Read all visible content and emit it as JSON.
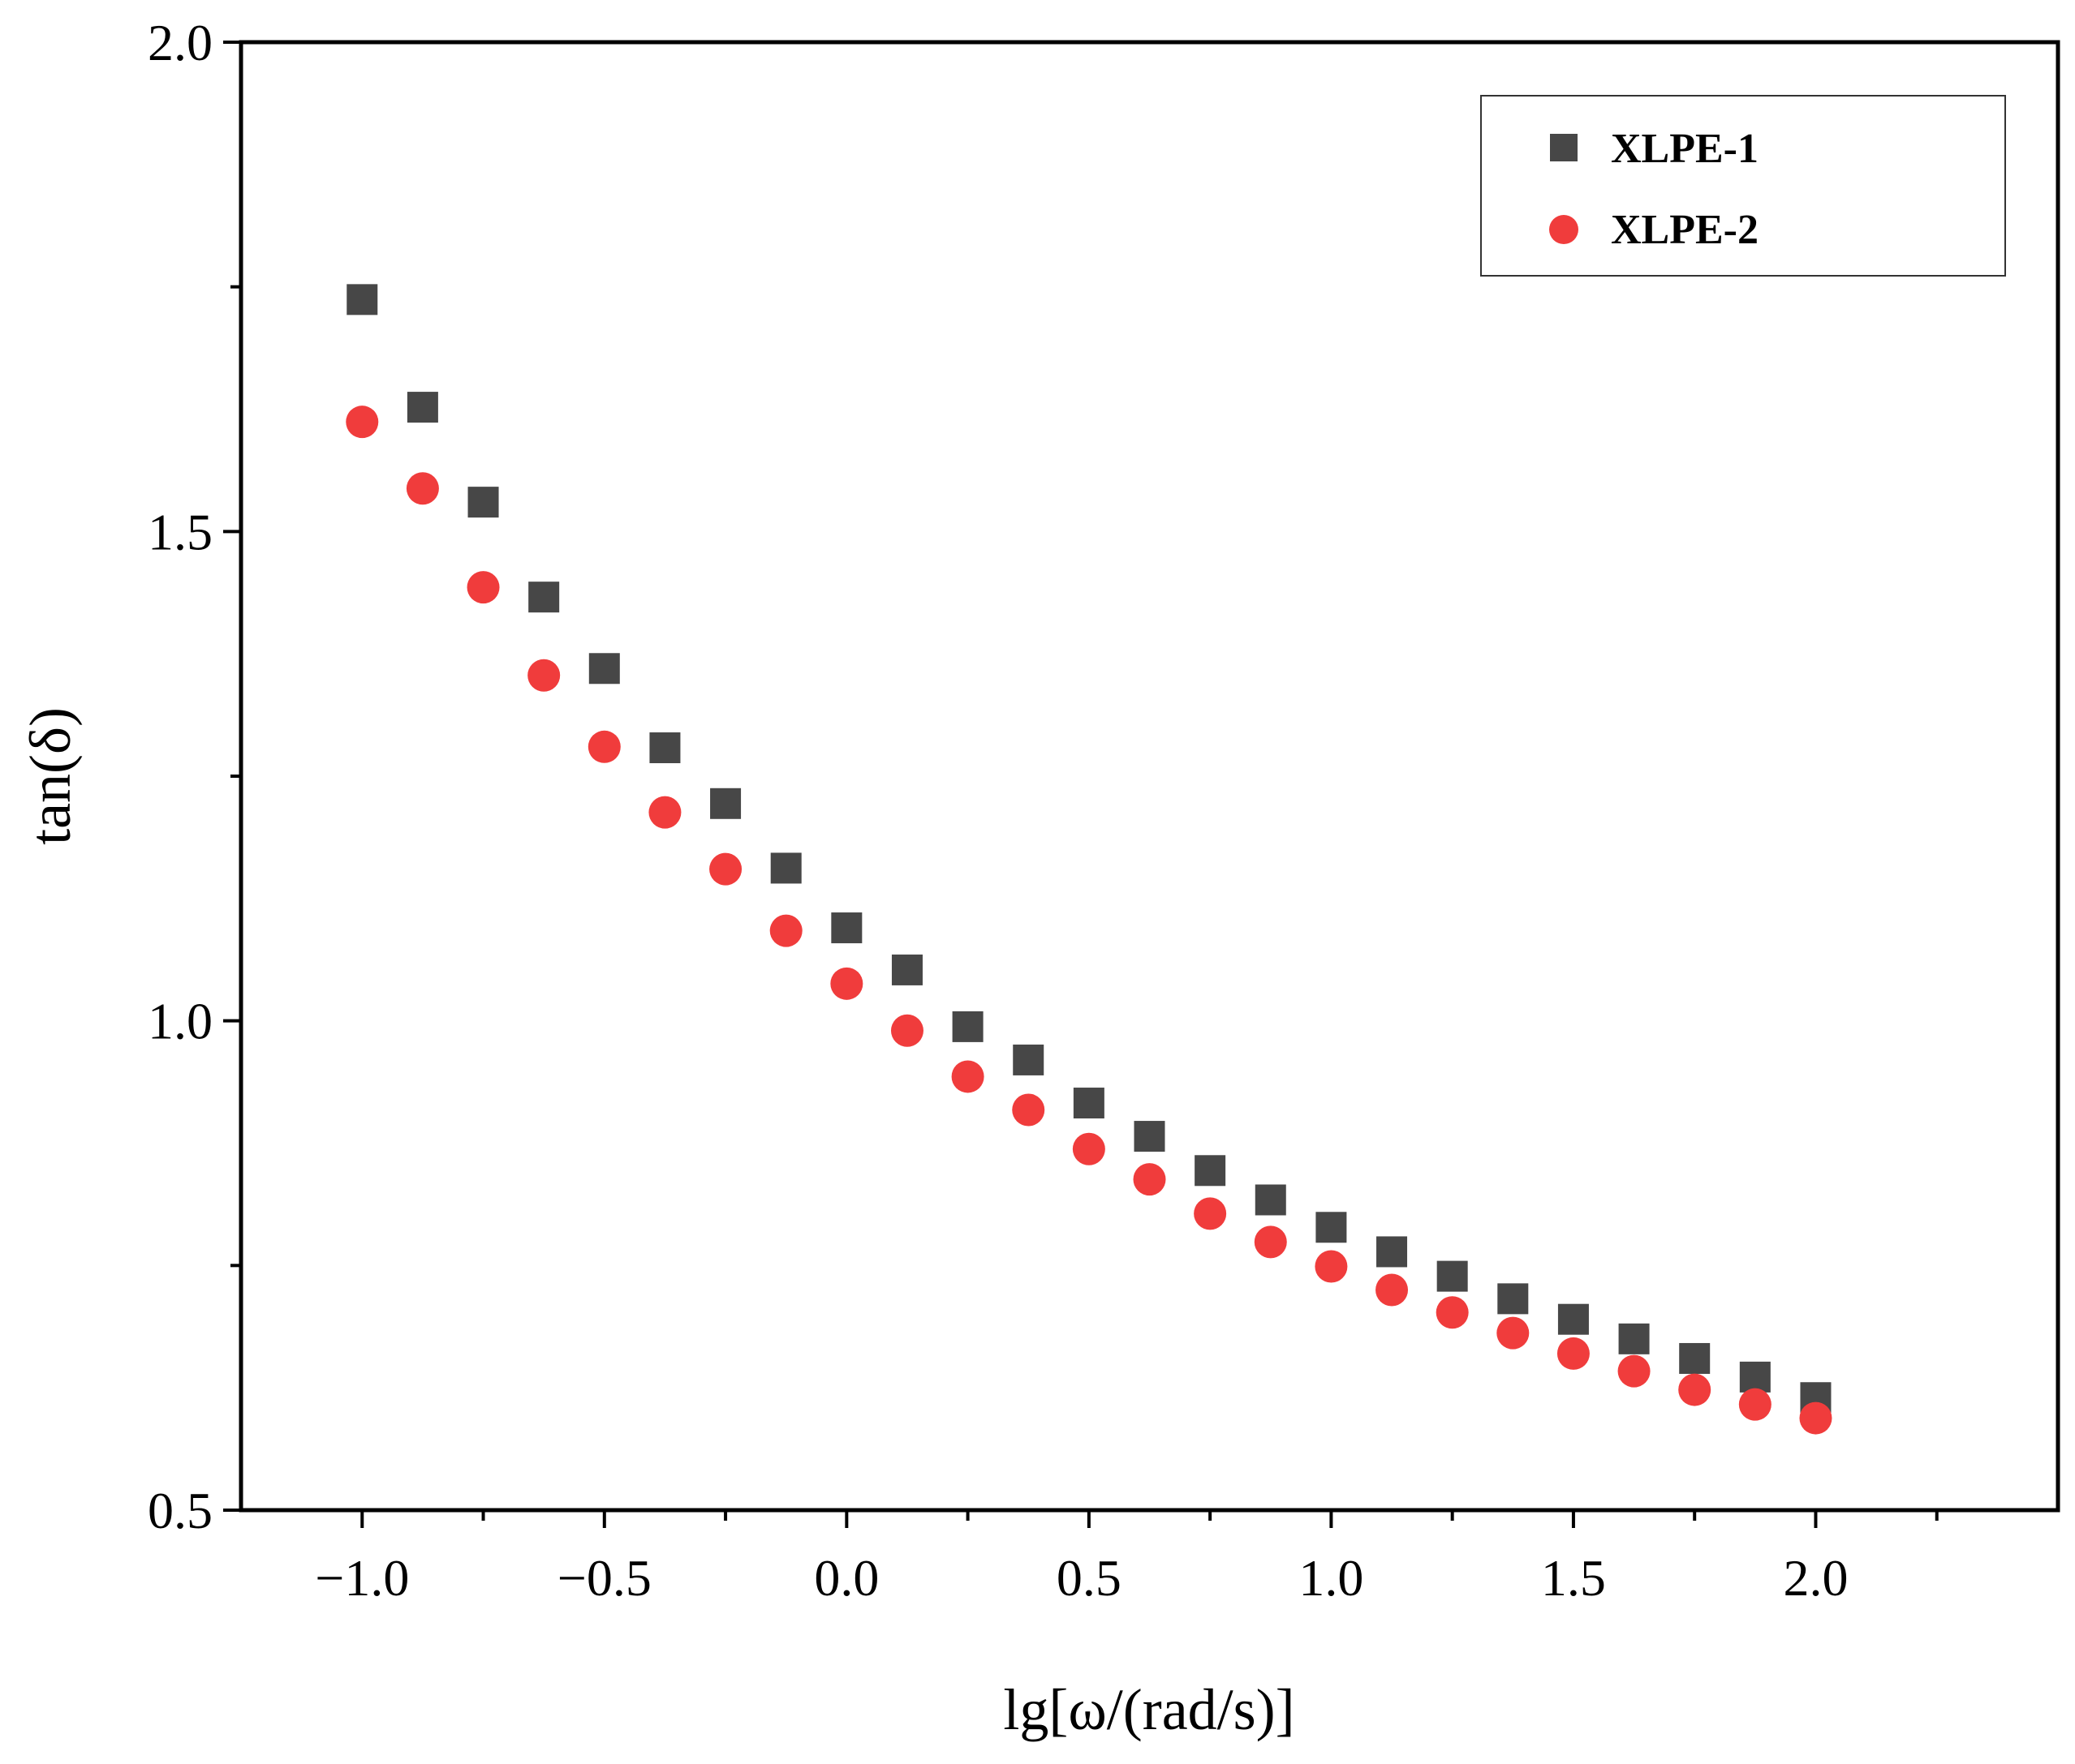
{
  "chart_data": {
    "type": "scatter",
    "title": "",
    "xlabel": "lg[ω/(rad/s)]",
    "ylabel": "tan(δ)",
    "xlim": [
      -1.25,
      2.5
    ],
    "ylim": [
      0.5,
      2.0
    ],
    "grid": false,
    "legend_position": "top-right",
    "xticks": [
      -1.0,
      -0.5,
      0.0,
      0.5,
      1.0,
      1.5,
      2.0
    ],
    "xtick_labels": [
      "−1.0",
      "−0.5",
      "0.0",
      "0.5",
      "1.0",
      "1.5",
      "2.0"
    ],
    "yticks": [
      0.5,
      1.0,
      1.5,
      2.0
    ],
    "ytick_labels": [
      "0.5",
      "1.0",
      "1.5",
      "2.0"
    ],
    "x": [
      -1.0,
      -0.875,
      -0.75,
      -0.625,
      -0.5,
      -0.375,
      -0.25,
      -0.125,
      0.0,
      0.125,
      0.25,
      0.375,
      0.5,
      0.625,
      0.75,
      0.875,
      1.0,
      1.125,
      1.25,
      1.375,
      1.5,
      1.625,
      1.75,
      1.875,
      2.0
    ],
    "series": [
      {
        "name": "XLPE-1",
        "marker": "square",
        "color": "#474747",
        "values": [
          1.737,
          1.627,
          1.53,
          1.433,
          1.36,
          1.279,
          1.222,
          1.156,
          1.095,
          1.052,
          0.994,
          0.96,
          0.916,
          0.882,
          0.847,
          0.817,
          0.789,
          0.764,
          0.739,
          0.716,
          0.695,
          0.675,
          0.655,
          0.636,
          0.615
        ]
      },
      {
        "name": "XLPE-2",
        "marker": "circle",
        "color": "#f03c3c",
        "values": [
          1.612,
          1.544,
          1.443,
          1.353,
          1.28,
          1.213,
          1.155,
          1.092,
          1.038,
          0.99,
          0.943,
          0.909,
          0.869,
          0.838,
          0.803,
          0.774,
          0.749,
          0.725,
          0.702,
          0.681,
          0.66,
          0.642,
          0.623,
          0.608,
          0.594
        ]
      }
    ]
  }
}
